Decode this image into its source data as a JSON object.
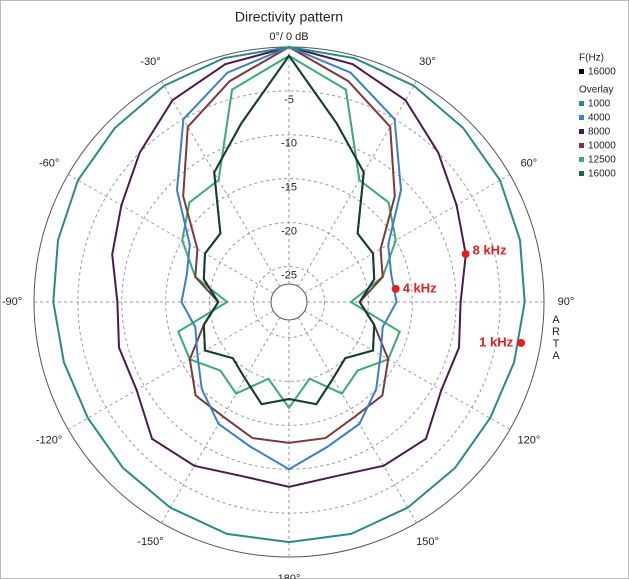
{
  "chart_data": {
    "type": "polar",
    "title": "Directivity pattern",
    "side_label": "ARTA",
    "legend_title": "F(Hz)",
    "overlay_title": "Overlay",
    "rlim": [
      -27,
      0
    ],
    "rticks": [
      -5,
      -10,
      -15,
      -20,
      -25
    ],
    "thetaticks": [
      {
        "value": 0,
        "label": "0°/ 0 dB"
      },
      {
        "value": 30,
        "label": "30°"
      },
      {
        "value": 60,
        "label": "60°"
      },
      {
        "value": 90,
        "label": "90°"
      },
      {
        "value": 120,
        "label": "120°"
      },
      {
        "value": 150,
        "label": "150°"
      },
      {
        "value": 180,
        "label": "180°"
      },
      {
        "value": -150,
        "label": "-150°"
      },
      {
        "value": -120,
        "label": "-120°"
      },
      {
        "value": -90,
        "label": "-90°"
      },
      {
        "value": -60,
        "label": "-60°"
      },
      {
        "value": -30,
        "label": "-30°"
      }
    ],
    "theta": [
      0,
      15,
      30,
      45,
      60,
      75,
      90,
      105,
      120,
      135,
      150,
      165,
      180,
      195,
      210,
      225,
      240,
      255,
      270,
      285,
      300,
      315,
      330,
      345
    ],
    "series": [
      {
        "name": "16000",
        "color": "#1a3a38",
        "values": [
          -1,
          -8,
          -12,
          -18,
          -18,
          -19,
          -21,
          -19,
          -18,
          -20,
          -19,
          -17,
          -18,
          -17,
          -19,
          -20,
          -18,
          -19,
          -21,
          -19,
          -18,
          -18,
          -12,
          -8
        ]
      },
      {
        "name": "1000",
        "color": "#2a8a8a",
        "values": [
          0,
          -0.3,
          -0.6,
          -1,
          -1.3,
          -1.8,
          -2.2,
          -2.5,
          -2.6,
          -2.3,
          -2,
          -1.7,
          -1.7,
          -1.7,
          -2,
          -2.3,
          -2.6,
          -2.5,
          -2.2,
          -1.8,
          -1.3,
          -1,
          -0.6,
          -0.3
        ]
      },
      {
        "name": "4000",
        "color": "#3a7fc8",
        "values": [
          0,
          -2,
          -5,
          -11,
          -16,
          -17,
          -16.8,
          -18,
          -17,
          -15,
          -13,
          -12,
          -10,
          -12,
          -13,
          -15,
          -17,
          -18,
          -16.8,
          -17,
          -16,
          -11,
          -5,
          -2
        ]
      },
      {
        "name": "8000",
        "color": "#4b1a4a",
        "values": [
          0,
          -1,
          -2.5,
          -5,
          -7,
          -8.2,
          -9.5,
          -9,
          -9,
          -7,
          -7.5,
          -8.5,
          -8,
          -8.5,
          -7.5,
          -7,
          -9,
          -9,
          -9.5,
          -8.2,
          -7,
          -5,
          -2.5,
          -1
        ]
      },
      {
        "name": "10000",
        "color": "#7a3a3a",
        "values": [
          0,
          -3,
          -6,
          -12,
          -17,
          -18,
          -21,
          -19,
          -16,
          -14,
          -14,
          -13,
          -13,
          -13,
          -14,
          -14,
          -16,
          -19,
          -21,
          -18,
          -17,
          -12,
          -6,
          -3
        ]
      },
      {
        "name": "12500",
        "color": "#3aaa70",
        "values": [
          -1,
          -4,
          -13,
          -13,
          -15,
          -18,
          -22,
          -16,
          -16,
          -18,
          -17,
          -20,
          -17,
          -20,
          -17,
          -18,
          -16,
          -16,
          -22,
          -18,
          -15,
          -13,
          -13,
          -4
        ]
      },
      {
        "name": "16000",
        "color": "#1f5f55",
        "values": [
          -1,
          -8,
          -12,
          -18,
          -18,
          -19,
          -21,
          -19,
          -18,
          -20,
          -19,
          -17,
          -18,
          -17,
          -19,
          -20,
          -18,
          -19,
          -21,
          -19,
          -18,
          -18,
          -12,
          -8
        ]
      }
    ],
    "annotations": [
      {
        "text": "8 kHz",
        "theta": 74.8,
        "r": -8.2
      },
      {
        "text": "4 kHz",
        "theta": 83,
        "r": -16.8
      },
      {
        "text": "1 kHz",
        "theta": 100,
        "r": -2.2
      }
    ]
  }
}
